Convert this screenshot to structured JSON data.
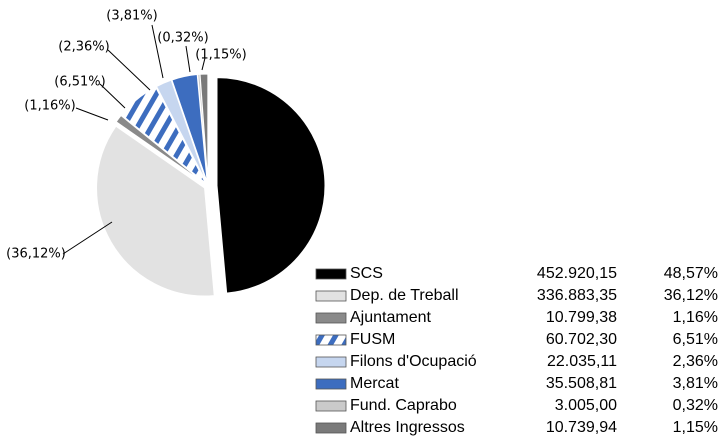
{
  "chart_data": {
    "type": "pie",
    "categories": [
      "SCS",
      "Dep. de Treball",
      "Ajuntament",
      "FUSM",
      "Filons d'Ocupació",
      "Mercat",
      "Fund. Caprabo",
      "Altres Ingressos"
    ],
    "values": [
      48.57,
      36.12,
      1.16,
      6.51,
      2.36,
      3.81,
      0.32,
      1.15
    ],
    "value_labels": [
      "(48,57%)",
      "(36,12%)",
      "(1,16%)",
      "(6,51%)",
      "(2,36%)",
      "(3,81%)",
      "(0,32%)",
      "(1,15%)"
    ],
    "percent_labels": [
      "48,57%",
      "36,12%",
      "1,16%",
      "6,51%",
      "2,36%",
      "3,81%",
      "0,32%",
      "1,15%"
    ],
    "amounts": [
      452920.15,
      336883.35,
      10799.38,
      60702.3,
      22035.11,
      35508.81,
      3005.0,
      10739.94
    ],
    "amount_labels": [
      "452.920,15",
      "336.883,35",
      "10.799,38",
      "60.702,30",
      "22.035,11",
      "35.508,81",
      "3.005,00",
      "10.739,94"
    ],
    "colors": [
      "#000000",
      "#e2e2e2",
      "#8a8a8a",
      "hatch",
      "#c6d6ef",
      "#3d6dbf",
      "#cacaca",
      "#7a7a7a"
    ]
  }
}
